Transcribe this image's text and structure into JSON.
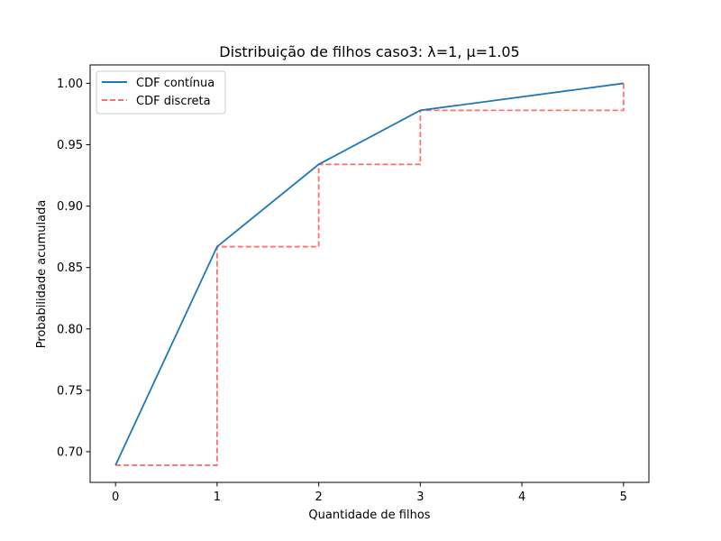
{
  "chart_data": {
    "type": "line",
    "title": "Distribuição de filhos caso3: λ=1, μ=1.05",
    "xlabel": "Quantidade de filhos",
    "ylabel": "Probabilidade acumulada",
    "xlim": [
      -0.25,
      5.25
    ],
    "ylim": [
      0.675,
      1.015
    ],
    "xticks": [
      0,
      1,
      2,
      3,
      4,
      5
    ],
    "yticks": [
      0.7,
      0.75,
      0.8,
      0.85,
      0.9,
      0.95,
      1.0
    ],
    "xtick_labels": [
      "0",
      "1",
      "2",
      "3",
      "4",
      "5"
    ],
    "ytick_labels": [
      "0.70",
      "0.75",
      "0.80",
      "0.85",
      "0.90",
      "0.95",
      "1.00"
    ],
    "legend_position": "top-left",
    "grid": false,
    "series": [
      {
        "name": "CDF contínua",
        "style": "solid",
        "color": "#1f77b4",
        "x": [
          0,
          1,
          2,
          3,
          5
        ],
        "y": [
          0.689,
          0.867,
          0.934,
          0.978,
          1.0
        ]
      },
      {
        "name": "CDF discreta",
        "style": "dashed-step-post",
        "color": "#ff7070",
        "x": [
          0,
          1,
          2,
          3,
          5
        ],
        "y": [
          0.689,
          0.867,
          0.934,
          0.978,
          1.0
        ]
      }
    ]
  }
}
